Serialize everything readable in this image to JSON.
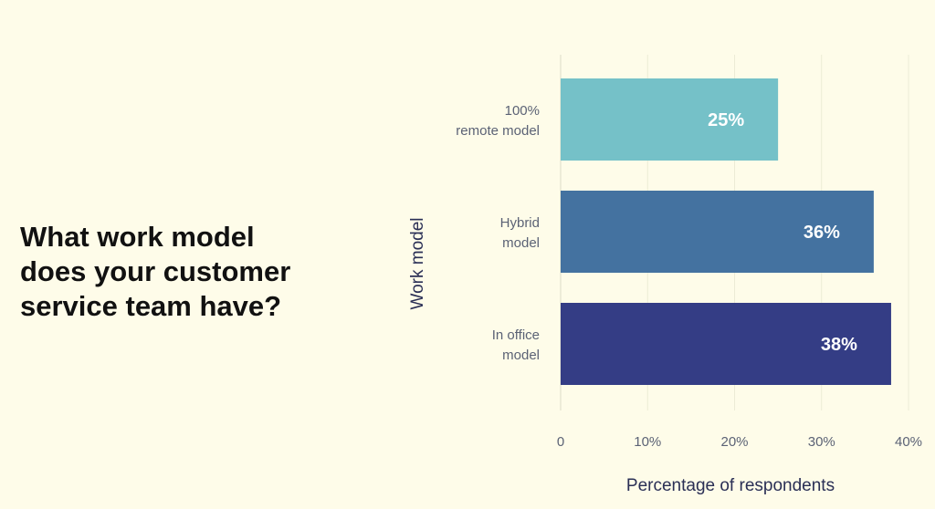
{
  "headline": "What work model does your customer service team have?",
  "chart_data": {
    "type": "bar",
    "orientation": "horizontal",
    "title": "",
    "ylabel": "Work model",
    "xlabel": "Percentage of respondents",
    "categories": [
      [
        "100%",
        "remote model"
      ],
      [
        "Hybrid",
        "model"
      ],
      [
        "In office",
        "model"
      ]
    ],
    "values": [
      25,
      36,
      38
    ],
    "value_labels": [
      "25%",
      "36%",
      "38%"
    ],
    "xlim": [
      0,
      40
    ],
    "xticks": [
      0,
      10,
      20,
      30,
      40
    ],
    "xtick_labels": [
      "0",
      "10%",
      "20%",
      "30%",
      "40%"
    ],
    "colors": [
      "#75c1c8",
      "#4472a0",
      "#343d85"
    ],
    "grid": true,
    "legend": "none"
  }
}
